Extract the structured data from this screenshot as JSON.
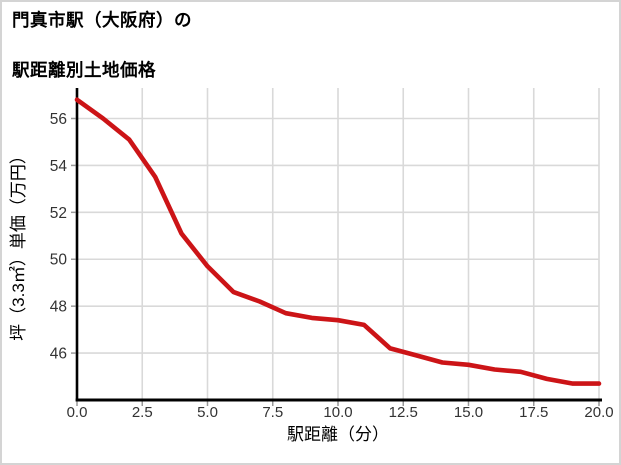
{
  "chart_data": {
    "type": "line",
    "title": "門真市駅（大阪府）の駅距離別土地価格",
    "title_lines": [
      "門真市駅（大阪府）の",
      "駅距離別土地価格"
    ],
    "xlabel": "駅距離（分）",
    "ylabel": "坪（3.3㎡）単価（万円）",
    "series": [
      {
        "name": "駅距離別土地価格",
        "x": [
          0,
          1,
          2,
          3,
          4,
          5,
          6,
          7,
          8,
          9,
          10,
          11,
          12,
          13,
          14,
          15,
          16,
          17,
          18,
          19,
          20
        ],
        "values": [
          56.8,
          56.0,
          55.1,
          53.5,
          51.1,
          49.7,
          48.6,
          48.2,
          47.7,
          47.5,
          47.4,
          47.2,
          46.2,
          45.9,
          45.6,
          45.5,
          45.3,
          45.2,
          44.9,
          44.7,
          44.7
        ]
      }
    ],
    "xlim": [
      0,
      20
    ],
    "ylim": [
      44.0,
      57.3
    ],
    "x_ticks": [
      0,
      2.5,
      5,
      7.5,
      10,
      12.5,
      15,
      17.5,
      20
    ],
    "x_tick_labels": [
      "0.0",
      "2.5",
      "5.0",
      "7.5",
      "10.0",
      "12.5",
      "15.0",
      "17.5",
      "20.0"
    ],
    "y_ticks": [
      46,
      48,
      50,
      52,
      54,
      56
    ],
    "y_tick_labels": [
      "46",
      "48",
      "50",
      "52",
      "54",
      "56"
    ],
    "grid": true,
    "legend_position": "none",
    "colors": {
      "line": "#cc1417",
      "grid": "#d9d9d9",
      "axis": "#000000",
      "tick_mark": "#999999",
      "tick_label": "#333333",
      "border": "#d4d4d4",
      "background": "#ffffff"
    }
  }
}
